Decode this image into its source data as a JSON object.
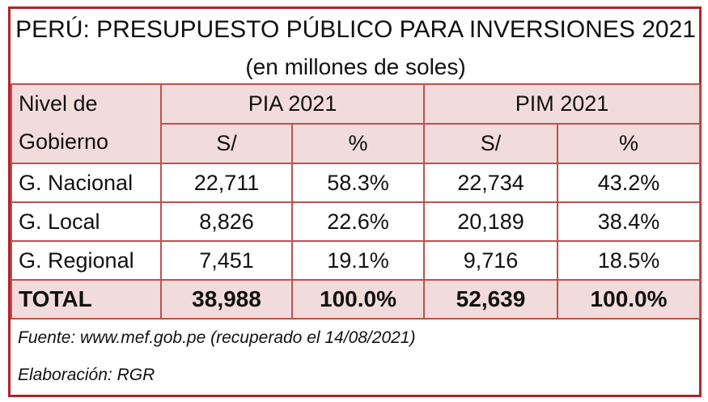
{
  "table": {
    "title": "PERÚ: PRESUPUESTO PÚBLICO PARA INVERSIONES 2021",
    "subtitle": "(en millones de soles)",
    "level_header": [
      "Nivel de",
      "Gobierno"
    ],
    "groups": [
      "PIA 2021",
      "PIM 2021"
    ],
    "subheaders": [
      "S/",
      "%",
      "S/",
      "%"
    ],
    "rows": [
      [
        "G. Nacional",
        "22,711",
        "58.3%",
        "22,734",
        "43.2%"
      ],
      [
        "G. Local",
        "8,826",
        "22.6%",
        "20,189",
        "38.4%"
      ],
      [
        "G. Regional",
        "7,451",
        "19.1%",
        "9,716",
        "18.5%"
      ]
    ],
    "total": [
      "TOTAL",
      "38,988",
      "100.0%",
      "52,639",
      "100.0%"
    ],
    "source": "Fuente: www.mef.gob.pe (recuperado el 14/08/2021)",
    "credit": "Elaboración: RGR"
  }
}
